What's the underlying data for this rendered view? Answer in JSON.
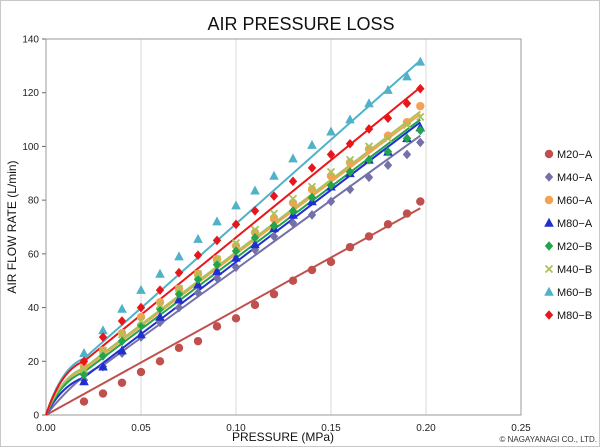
{
  "chart_data": {
    "type": "scatter",
    "title": "AIR PRESSURE LOSS",
    "xlabel": "PRESSURE (MPa)",
    "ylabel": "AIR FLOW RATE (L/min)",
    "xlim": [
      0,
      0.25
    ],
    "ylim": [
      0,
      140
    ],
    "x_ticks": [
      "0.00",
      "0.05",
      "0.10",
      "0.15",
      "0.20",
      "0.25"
    ],
    "y_ticks": [
      "0",
      "20",
      "40",
      "60",
      "80",
      "100",
      "120",
      "140"
    ],
    "grid": "vertical",
    "legend_position": "right",
    "copyright": "© NAGAYANAGI CO., LTD.",
    "x": [
      0.02,
      0.03,
      0.04,
      0.05,
      0.06,
      0.07,
      0.08,
      0.09,
      0.1,
      0.11,
      0.12,
      0.13,
      0.14,
      0.15,
      0.16,
      0.17,
      0.18,
      0.19,
      0.197
    ],
    "series": [
      {
        "name": "M20−A",
        "marker": "circle",
        "color": "#c0504d",
        "values": [
          5,
          8,
          12,
          16,
          20,
          25,
          27.5,
          33,
          36,
          41,
          45,
          50,
          54,
          57,
          62.5,
          66.5,
          71,
          75,
          79.5
        ],
        "fit": [
          [
            0,
            0
          ],
          [
            0.197,
            77
          ]
        ]
      },
      {
        "name": "M40−A",
        "marker": "diamond",
        "color": "#7470a8",
        "values": [
          13,
          18,
          23,
          29,
          34.5,
          40,
          45.5,
          51,
          55,
          61.5,
          66.5,
          71.5,
          74.5,
          79.5,
          84,
          88.5,
          93,
          97,
          101.5
        ],
        "fit": [
          [
            0,
            0
          ],
          [
            0.03,
            18.5
          ],
          [
            0.197,
            104
          ]
        ]
      },
      {
        "name": "M60−A",
        "marker": "circle",
        "color": "#f2a250",
        "values": [
          18,
          24,
          30.5,
          36.5,
          42,
          47,
          52.5,
          58,
          63,
          68,
          73,
          79,
          84,
          89,
          94,
          99,
          104,
          109,
          115
        ],
        "fit": [
          [
            0,
            0
          ],
          [
            0.02,
            17
          ],
          [
            0.197,
            112
          ]
        ]
      },
      {
        "name": "M80−A",
        "marker": "triangle",
        "color": "#1f2fd0",
        "values": [
          12.5,
          18,
          24,
          30,
          36.5,
          43,
          48.5,
          53.5,
          58.5,
          63.5,
          69.5,
          74.5,
          79.5,
          85,
          90,
          95,
          98,
          103,
          107
        ],
        "fit": [
          [
            0,
            0
          ],
          [
            0.02,
            14
          ],
          [
            0.197,
            109
          ]
        ]
      },
      {
        "name": "M20−B",
        "marker": "diamond",
        "color": "#21a44a",
        "values": [
          15,
          22,
          27.5,
          33.5,
          39.5,
          45,
          50.5,
          56,
          61,
          66,
          70.5,
          76,
          81,
          85.5,
          90.5,
          95,
          98,
          103,
          106
        ],
        "fit": [
          [
            0,
            0
          ],
          [
            0.02,
            16
          ],
          [
            0.197,
            110
          ]
        ]
      },
      {
        "name": "M40−B",
        "marker": "x",
        "color": "#a9c25a",
        "values": [
          17,
          24,
          30,
          35,
          41,
          47,
          52.5,
          58,
          64,
          69,
          75,
          80.5,
          85,
          90.5,
          95,
          100,
          103,
          108,
          111
        ],
        "fit": [
          [
            0,
            0
          ],
          [
            0.02,
            17.5
          ],
          [
            0.197,
            113
          ]
        ]
      },
      {
        "name": "M60−B",
        "marker": "triangle",
        "color": "#4fb2c9",
        "values": [
          23,
          31.5,
          39.5,
          46.5,
          52.5,
          59,
          65.5,
          72,
          78,
          83.5,
          89,
          95.5,
          100.5,
          105.5,
          110,
          116,
          121,
          126,
          131.5
        ],
        "fit": [
          [
            0,
            0
          ],
          [
            0.02,
            21
          ],
          [
            0.197,
            132
          ]
        ]
      },
      {
        "name": "M80−B",
        "marker": "diamond",
        "color": "#e8161a",
        "values": [
          20,
          29,
          35,
          40,
          46.5,
          53,
          59.5,
          65,
          71,
          76,
          81.5,
          87,
          92,
          97,
          101,
          106.5,
          110.5,
          116,
          121.5
        ],
        "fit": [
          [
            0,
            0
          ],
          [
            0.02,
            20
          ],
          [
            0.197,
            122
          ]
        ]
      }
    ]
  }
}
